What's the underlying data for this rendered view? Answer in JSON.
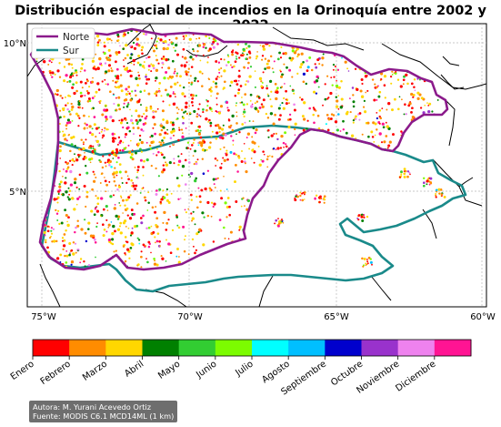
{
  "title": "Distribución espacial de incendios en la Orinoquía entre 2002 y 2022",
  "legend": [
    {
      "label": "Norte",
      "color": "#8b1a8b"
    },
    {
      "label": "Sur",
      "color": "#1a8a8a"
    }
  ],
  "axes": {
    "x_ticks": [
      "75°W",
      "70°W",
      "65°W",
      "60°W"
    ],
    "y_ticks": [
      "10°N",
      "5°N"
    ]
  },
  "colorbar": {
    "months": [
      {
        "label": "Enero",
        "color": "#ff0000"
      },
      {
        "label": "Febrero",
        "color": "#ff8c00"
      },
      {
        "label": "Marzo",
        "color": "#ffd700"
      },
      {
        "label": "Abril",
        "color": "#008000"
      },
      {
        "label": "Mayo",
        "color": "#32cd32"
      },
      {
        "label": "Junio",
        "color": "#7cfc00"
      },
      {
        "label": "Julio",
        "color": "#00ffff"
      },
      {
        "label": "Agosto",
        "color": "#00bfff"
      },
      {
        "label": "Septiembre",
        "color": "#0000cd"
      },
      {
        "label": "Octubre",
        "color": "#9932cc"
      },
      {
        "label": "Noviembre",
        "color": "#ee82ee"
      },
      {
        "label": "Diciembre",
        "color": "#ff1493"
      }
    ]
  },
  "credits": {
    "author": "Autora: M. Yurani Acevedo Ortiz",
    "source": "Fuente: MODIS C6.1 MCD14ML (1 km)"
  }
}
